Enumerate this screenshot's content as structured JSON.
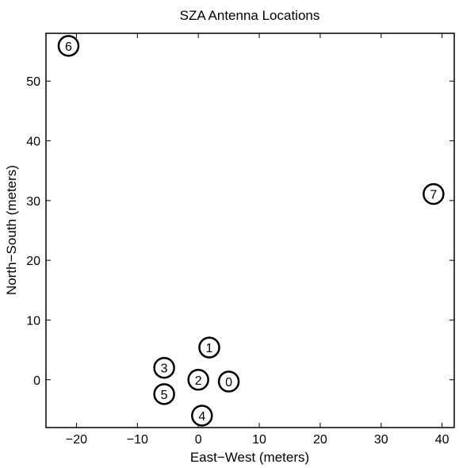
{
  "chart_data": {
    "type": "scatter",
    "title": "SZA Antenna Locations",
    "xlabel": "East−West (meters)",
    "ylabel": "North−South (meters)",
    "xlim": [
      -25,
      42
    ],
    "ylim": [
      -8,
      58
    ],
    "xticks": [
      -20,
      -10,
      0,
      10,
      20,
      30,
      40
    ],
    "xtick_labels": [
      "−20",
      "−10",
      "0",
      "10",
      "20",
      "30",
      "40"
    ],
    "yticks": [
      0,
      10,
      20,
      30,
      40,
      50
    ],
    "ytick_labels": [
      "0",
      "10",
      "20",
      "30",
      "40",
      "50"
    ],
    "grid": false,
    "marker": "circle",
    "points": [
      {
        "label": "0",
        "x": 5.0,
        "y": -0.3
      },
      {
        "label": "1",
        "x": 1.8,
        "y": 5.4
      },
      {
        "label": "2",
        "x": 0.0,
        "y": 0.0
      },
      {
        "label": "3",
        "x": -5.6,
        "y": 2.0
      },
      {
        "label": "4",
        "x": 0.6,
        "y": -6.0
      },
      {
        "label": "5",
        "x": -5.6,
        "y": -2.4
      },
      {
        "label": "6",
        "x": -21.3,
        "y": 55.9
      },
      {
        "label": "7",
        "x": 38.6,
        "y": 31.1
      }
    ]
  }
}
